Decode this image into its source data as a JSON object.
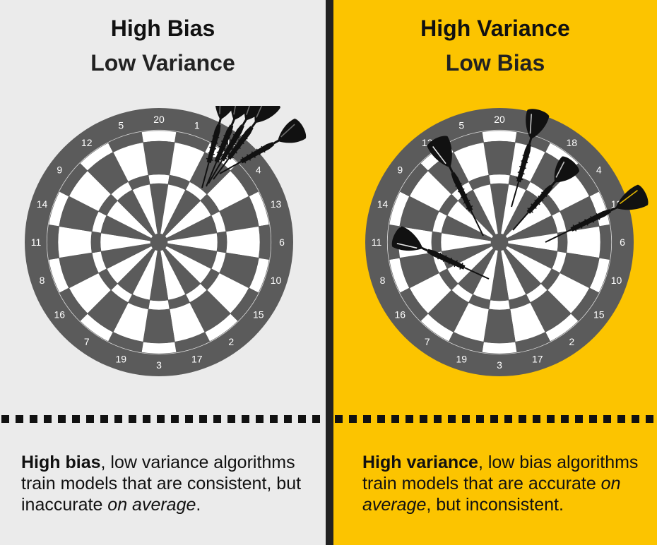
{
  "colors": {
    "left_bg": "#ebebeb",
    "right_bg": "#fcc400",
    "divider": "#222222",
    "board_dark": "#5b5b5b",
    "board_light": "#ffffff",
    "dart": "#111111"
  },
  "board_numbers": [
    "20",
    "1",
    "18",
    "4",
    "13",
    "6",
    "10",
    "15",
    "2",
    "17",
    "3",
    "19",
    "7",
    "16",
    "8",
    "11",
    "14",
    "9",
    "12",
    "5"
  ],
  "panels": {
    "left": {
      "title": "High Bias",
      "subtitle": "Low Variance",
      "desc_bold": "High bias",
      "desc_text": ", low variance algorithms train models that are consistent, but inaccurate ",
      "desc_italic": "on average",
      "desc_end": "."
    },
    "right": {
      "title": "High Variance",
      "subtitle": "Low Bias",
      "desc_bold": "High variance",
      "desc_text": ", low bias algorithms train models that are accurate ",
      "desc_italic": "on average",
      "desc_end": ", but inconsistent."
    }
  }
}
